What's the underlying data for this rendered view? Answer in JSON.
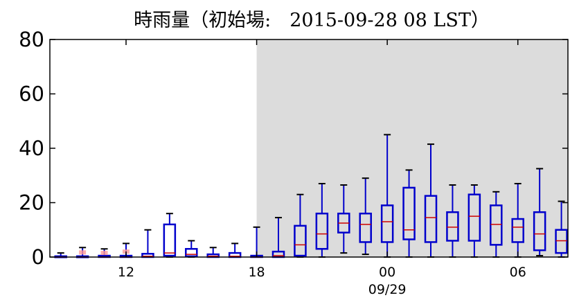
{
  "chart_data": {
    "type": "box",
    "title": "時雨量（初始場:　2015-09-28 08 LST）",
    "ylim": [
      0,
      80
    ],
    "yticks": [
      "0",
      "20",
      "40",
      "60",
      "80"
    ],
    "xticks": [
      {
        "label": "12",
        "hour": 12
      },
      {
        "label": "18",
        "hour": 18
      },
      {
        "label": "00",
        "sublabel": "09/29",
        "hour": 24
      },
      {
        "label": "06",
        "hour": 30
      }
    ],
    "xlim_hours": [
      8.5,
      32.3
    ],
    "night_shade_start_hour": 18,
    "colors": {
      "box": "#0000cc",
      "median": "#cc0000",
      "night_shade": "#dcdcdc",
      "flier": "#ff9999"
    },
    "boxes": [
      {
        "hour": 9,
        "wlo": 0,
        "q1": 0,
        "med": 0,
        "q3": 0.3,
        "whi": 1.5
      },
      {
        "hour": 10,
        "wlo": 0,
        "q1": 0,
        "med": 0,
        "q3": 0.3,
        "whi": 3.5
      },
      {
        "hour": 11,
        "wlo": 0,
        "q1": 0,
        "med": 0,
        "q3": 0.5,
        "whi": 3
      },
      {
        "hour": 12,
        "wlo": 0,
        "q1": 0,
        "med": 0,
        "q3": 0.5,
        "whi": 5
      },
      {
        "hour": 13,
        "wlo": 0,
        "q1": 0,
        "med": 0.3,
        "q3": 1.2,
        "whi": 10
      },
      {
        "hour": 14,
        "wlo": 0,
        "q1": 0.5,
        "med": 1.5,
        "q3": 12,
        "whi": 16
      },
      {
        "hour": 15,
        "wlo": 0,
        "q1": 0.3,
        "med": 1,
        "q3": 3,
        "whi": 6
      },
      {
        "hour": 16,
        "wlo": 0,
        "q1": 0,
        "med": 0.3,
        "q3": 1,
        "whi": 3.5
      },
      {
        "hour": 17,
        "wlo": 0,
        "q1": 0,
        "med": 0.3,
        "q3": 1.5,
        "whi": 5
      },
      {
        "hour": 18,
        "wlo": 0,
        "q1": 0,
        "med": 0,
        "q3": 0.5,
        "whi": 11
      },
      {
        "hour": 19,
        "wlo": 0,
        "q1": 0,
        "med": 0.5,
        "q3": 2,
        "whi": 14.5
      },
      {
        "hour": 20,
        "wlo": 0,
        "q1": 0.5,
        "med": 4.5,
        "q3": 11.5,
        "whi": 23
      },
      {
        "hour": 21,
        "wlo": 0,
        "q1": 3,
        "med": 8.5,
        "q3": 16,
        "whi": 27
      },
      {
        "hour": 22,
        "wlo": 1.5,
        "q1": 9,
        "med": 12.5,
        "q3": 16,
        "whi": 26.5
      },
      {
        "hour": 23,
        "wlo": 1,
        "q1": 5.5,
        "med": 12,
        "q3": 16,
        "whi": 29
      },
      {
        "hour": 24,
        "wlo": 0,
        "q1": 5.5,
        "med": 13,
        "q3": 19,
        "whi": 45
      },
      {
        "hour": 25,
        "wlo": 0,
        "q1": 6.5,
        "med": 10,
        "q3": 25.5,
        "whi": 32
      },
      {
        "hour": 26,
        "wlo": 0,
        "q1": 5.5,
        "med": 14.5,
        "q3": 22.5,
        "whi": 41.5
      },
      {
        "hour": 27,
        "wlo": 0,
        "q1": 6,
        "med": 11,
        "q3": 16.5,
        "whi": 26.5
      },
      {
        "hour": 28,
        "wlo": 0,
        "q1": 6,
        "med": 15,
        "q3": 23,
        "whi": 26.5
      },
      {
        "hour": 29,
        "wlo": 0,
        "q1": 4.5,
        "med": 12,
        "q3": 19,
        "whi": 24
      },
      {
        "hour": 30,
        "wlo": 0,
        "q1": 5.5,
        "med": 11,
        "q3": 14,
        "whi": 27
      },
      {
        "hour": 31,
        "wlo": 0.5,
        "q1": 2.5,
        "med": 8.5,
        "q3": 16.5,
        "whi": 32.5
      },
      {
        "hour": 32,
        "wlo": 0,
        "q1": 1.5,
        "med": 6,
        "q3": 10,
        "whi": 20.5
      }
    ],
    "fliers": [
      {
        "hour": 10,
        "value": 1.2
      },
      {
        "hour": 11,
        "value": 1.0
      },
      {
        "hour": 12,
        "value": 1.5
      }
    ]
  }
}
